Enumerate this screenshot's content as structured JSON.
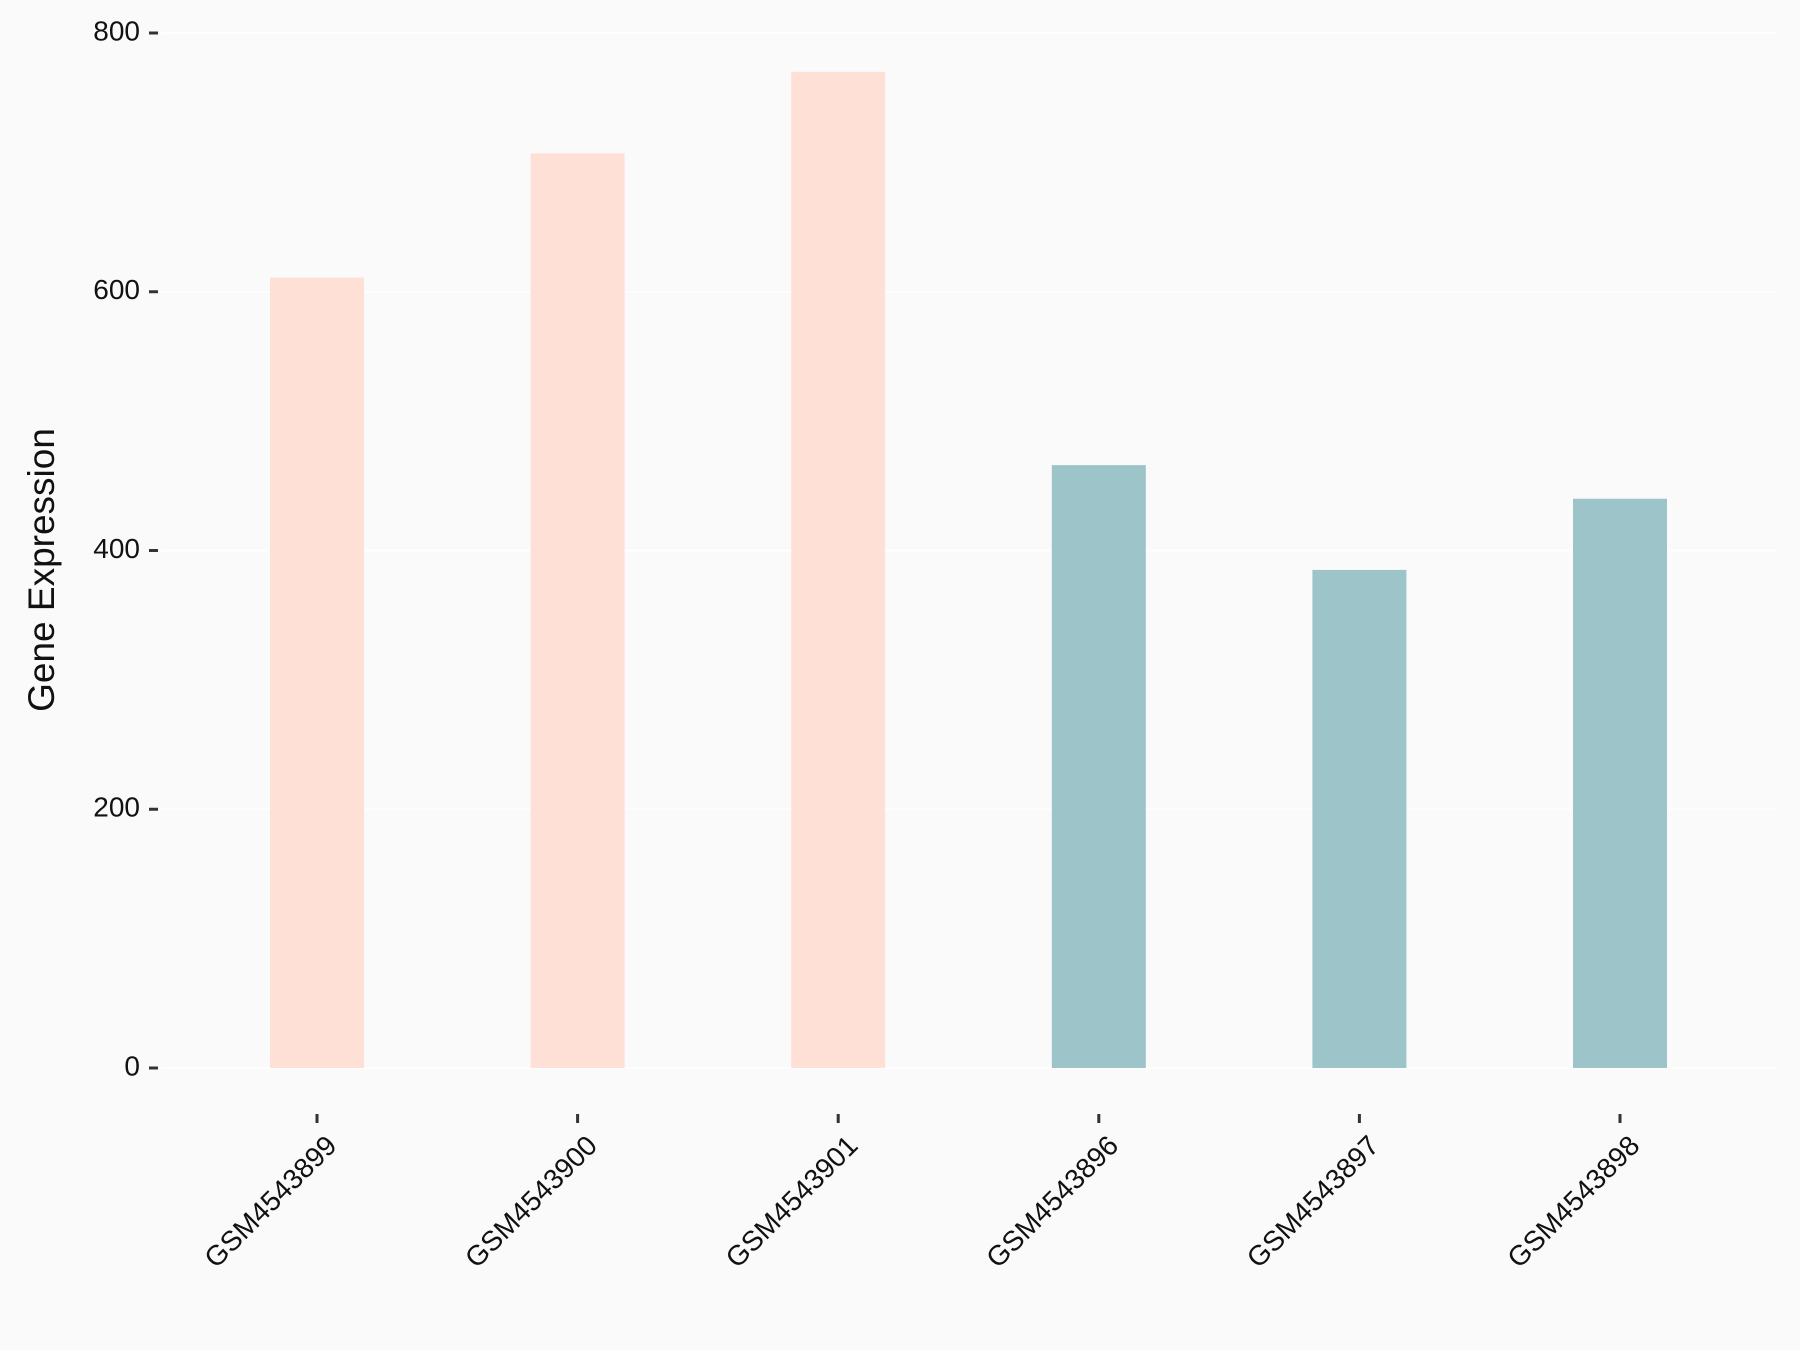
{
  "chart_data": {
    "type": "bar",
    "y_label": "Gene Expression",
    "categories": [
      "GSM4543899",
      "GSM4543900",
      "GSM4543901",
      "GSM4543896",
      "GSM4543897",
      "GSM4543898"
    ],
    "values": [
      611,
      707,
      770,
      466,
      385,
      440
    ],
    "colors": [
      "#ffe0d6",
      "#ffe0d6",
      "#ffe0d6",
      "#9dc4c8",
      "#9dc4c8",
      "#9dc4c8"
    ],
    "ylim": [
      0,
      800
    ],
    "yticks": [
      0,
      200,
      400,
      600,
      800
    ],
    "grid": true
  }
}
